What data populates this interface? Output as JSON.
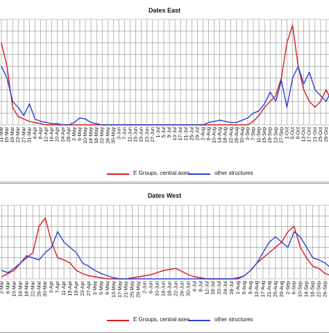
{
  "colors": {
    "red": "#d7191c",
    "blue": "#2b3fd4",
    "grid": "#8c8c8c"
  },
  "chart_data": [
    {
      "type": "line",
      "title": "Dates East",
      "xlabel": "",
      "ylabel": "",
      "grid": true,
      "legend_position": "bottom",
      "categories": [
        "11-Mar",
        "15-Mar",
        "19-Mar",
        "23-Mar",
        "27-Mar",
        "31-Mar",
        "4-Apr",
        "8-Apr",
        "12-Apr",
        "16-Apr",
        "20-Apr",
        "24-Apr",
        "28-Apr",
        "2-May",
        "6-May",
        "10-May",
        "14-May",
        "18-May",
        "22-May",
        "26-May",
        "30-May",
        "3-Jun",
        "7-Jun",
        "11-Jun",
        "15-Jun",
        "19-Jun",
        "23-Jun",
        "27-Jun",
        "1-Jul",
        "5-Jul",
        "9-Jul",
        "13-Jul",
        "17-Jul",
        "21-Jul",
        "25-Jul",
        "29-Jul",
        "2-Aug",
        "6-Aug",
        "10-Aug",
        "14-Aug",
        "18-Aug",
        "22-Aug",
        "26-Aug",
        "30-Aug",
        "3-Sep",
        "7-Sep",
        "11-Sep",
        "15-Sep",
        "19-Sep",
        "23-Sep",
        "27-Sep",
        "1-Oct",
        "5-Oct",
        "9-Oct",
        "13-Oct",
        "17-Oct",
        "21-Oct",
        "25-Oct",
        "29-Oct",
        "2-Nov"
      ],
      "series": [
        {
          "name": "E Groups, central axes",
          "color": "#d7191c",
          "values": [
            7,
            5,
            1.5,
            0.7,
            0.5,
            0.3,
            0.2,
            0.1,
            0,
            0,
            0,
            0,
            0,
            0,
            0,
            0,
            0,
            0,
            0,
            0,
            0,
            0,
            0,
            0,
            0,
            0,
            0,
            0,
            0,
            0,
            0,
            0,
            0,
            0,
            0,
            0,
            0,
            0,
            0,
            0,
            0,
            0,
            0,
            0,
            0,
            0.3,
            0.8,
            1.5,
            2,
            2.5,
            4,
            7,
            8.5,
            5,
            3,
            2,
            1.5,
            2,
            3,
            2
          ]
        },
        {
          "name": "other structures",
          "color": "#2b3fd4",
          "values": [
            5,
            4,
            2,
            1.5,
            0.8,
            1.8,
            0.5,
            0.3,
            0.2,
            0.1,
            0.1,
            0,
            0,
            0.2,
            0.6,
            0.5,
            0.2,
            0.1,
            0,
            0,
            0,
            0,
            0,
            0,
            0,
            0,
            0,
            0,
            0,
            0,
            0,
            0,
            0,
            0,
            0,
            0,
            0,
            0.2,
            0.3,
            0.4,
            0.3,
            0.2,
            0.2,
            0.4,
            0.6,
            1,
            1.2,
            1.8,
            2.8,
            2,
            3.8,
            1.5,
            4,
            5,
            3.5,
            4.5,
            3,
            2.5,
            2,
            3
          ]
        }
      ],
      "ylim": [
        0,
        9
      ]
    },
    {
      "type": "line",
      "title": "Dates West",
      "xlabel": "",
      "ylabel": "",
      "grid": true,
      "legend_position": "bottom",
      "categories": [
        "2-Mar",
        "6-Mar",
        "10-Mar",
        "14-Mar",
        "18-Mar",
        "22-Mar",
        "26-Mar",
        "30-Mar",
        "3-Apr",
        "7-Apr",
        "11-Apr",
        "15-Apr",
        "19-Apr",
        "23-Apr",
        "27-Apr",
        "1-May",
        "5-May",
        "9-May",
        "13-May",
        "17-May",
        "21-May",
        "25-May",
        "29-May",
        "2-Jun",
        "6-Jun",
        "10-Jun",
        "14-Jun",
        "18-Jun",
        "22-Jun",
        "26-Jun",
        "30-Jun",
        "4-Jul",
        "8-Jul",
        "12-Jul",
        "16-Jul",
        "20-Jul",
        "24-Jul",
        "28-Jul",
        "1-Aug",
        "5-Aug",
        "9-Aug",
        "13-Aug",
        "17-Aug",
        "21-Aug",
        "25-Aug",
        "29-Aug",
        "2-Sep",
        "6-Sep",
        "10-Sep",
        "14-Sep",
        "18-Sep",
        "22-Sep",
        "26-Sep",
        "30-Sep"
      ],
      "series": [
        {
          "name": "E Groups, central axes",
          "color": "#d7191c",
          "values": [
            0.2,
            0.5,
            0.8,
            1.5,
            2,
            2.5,
            5,
            5.8,
            3.5,
            2,
            1.8,
            1.5,
            0.8,
            0.5,
            0.3,
            0.2,
            0.1,
            0,
            0,
            0,
            0,
            0.1,
            0.2,
            0.3,
            0.4,
            0.6,
            0.8,
            0.9,
            1,
            0.7,
            0.4,
            0.2,
            0.1,
            0,
            0,
            0,
            0,
            0,
            0,
            0.3,
            0.8,
            1.5,
            2,
            2.5,
            3,
            3.5,
            4.5,
            5,
            3,
            2,
            1.2,
            1,
            0.5,
            0.3
          ]
        },
        {
          "name": "other structures",
          "color": "#2b3fd4",
          "values": [
            0.8,
            0.6,
            1,
            1.5,
            2.2,
            2,
            1.8,
            2.5,
            3,
            4.5,
            3.5,
            3,
            2.5,
            1.5,
            1.2,
            0.8,
            0.5,
            0.3,
            0.1,
            0,
            0,
            0,
            0,
            0,
            0,
            0,
            0,
            0,
            0,
            0,
            0,
            0,
            0,
            0,
            0,
            0,
            0,
            0,
            0.1,
            0.3,
            0.8,
            1.5,
            2.5,
            3.5,
            4,
            3.5,
            3,
            4.5,
            4,
            3,
            2,
            1.8,
            1.5,
            1
          ]
        }
      ],
      "ylim": [
        0,
        7
      ]
    }
  ]
}
